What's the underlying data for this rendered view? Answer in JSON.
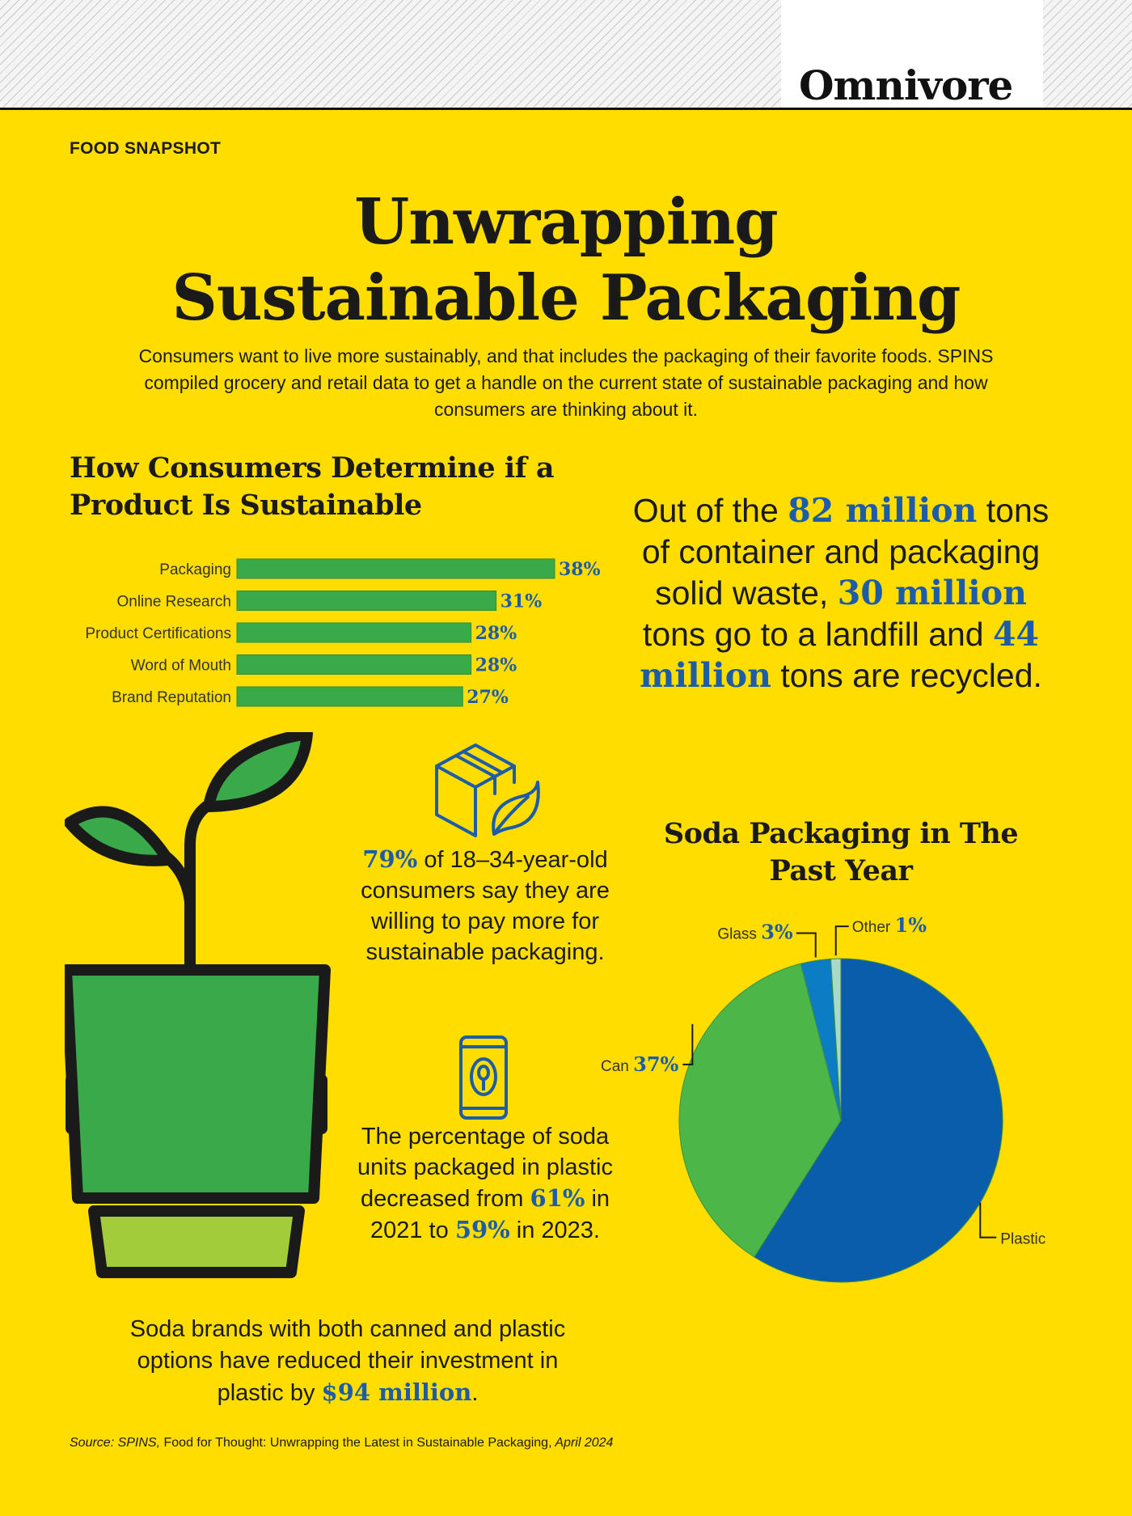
{
  "masthead": {
    "brand": "Omnivore"
  },
  "section_label": "FOOD SNAPSHOT",
  "title_lines": [
    "Unwrapping",
    "Sustainable Packaging"
  ],
  "intro": "Consumers want to live more sustainably, and that includes the packaging of their favorite foods. SPINS compiled grocery and retail data to get a handle on the current state of sustainable packaging and how consumers are thinking about it.",
  "waste": {
    "t1": "Out of the ",
    "n1": "82 million",
    "t2": " tons of container and packaging solid waste, ",
    "n2": "30 million",
    "t3": " tons go to a landfill and ",
    "n3": "44 million",
    "t4": " tons are recycled."
  },
  "stat_79": {
    "num": "79%",
    "text": " of 18–34-year-old consumers say they are willing to pay more for sustainable packaging."
  },
  "stat_soda": {
    "t1": "The percentage of soda units packaged in plastic decreased from ",
    "n1": "61%",
    "t2": " in 2021 to ",
    "n2": "59%",
    "t3": " in 2023."
  },
  "stat_94": {
    "t1": "Soda brands with both canned and plastic options have reduced their investment in plastic by ",
    "num": "$94 million",
    "t2": "."
  },
  "source": {
    "prefix": "Source: SPINS, ",
    "publication": "Food for Thought: Unwrapping the Latest in Sustainable Packaging,",
    "date": " April 2024"
  },
  "colors": {
    "background": "#FFDD00",
    "bar_green": "#3aa94a",
    "accent_blue": "#1d5ca8",
    "pie_blue": "#0a5dab",
    "pie_green": "#4cb748",
    "pie_midblue": "#0c7dc4",
    "pie_light": "#a9d9c8"
  },
  "icons": [
    "plant-cup-icon",
    "package-leaf-icon",
    "soda-can-icon"
  ],
  "chart_data": [
    {
      "type": "bar",
      "orientation": "horizontal",
      "title": "How Consumers Determine if a Product Is Sustainable",
      "categories": [
        "Packaging",
        "Online Research",
        "Product Certifications",
        "Word of Mouth",
        "Brand Reputation"
      ],
      "values": [
        38,
        31,
        28,
        28,
        27
      ],
      "value_labels": [
        "38%",
        "31%",
        "28%",
        "28%",
        "27%"
      ],
      "unit": "%",
      "xlim": [
        0,
        38
      ]
    },
    {
      "type": "pie",
      "title": "Soda Packaging in The Past Year",
      "slices": [
        {
          "label": "Plastic",
          "value": 59,
          "value_label": "59%",
          "color": "#0a5dab"
        },
        {
          "label": "Can",
          "value": 37,
          "value_label": "37%",
          "color": "#4cb748"
        },
        {
          "label": "Glass",
          "value": 3,
          "value_label": "3%",
          "color": "#0c7dc4"
        },
        {
          "label": "Other",
          "value": 1,
          "value_label": "1%",
          "color": "#a9d9c8"
        }
      ]
    }
  ]
}
